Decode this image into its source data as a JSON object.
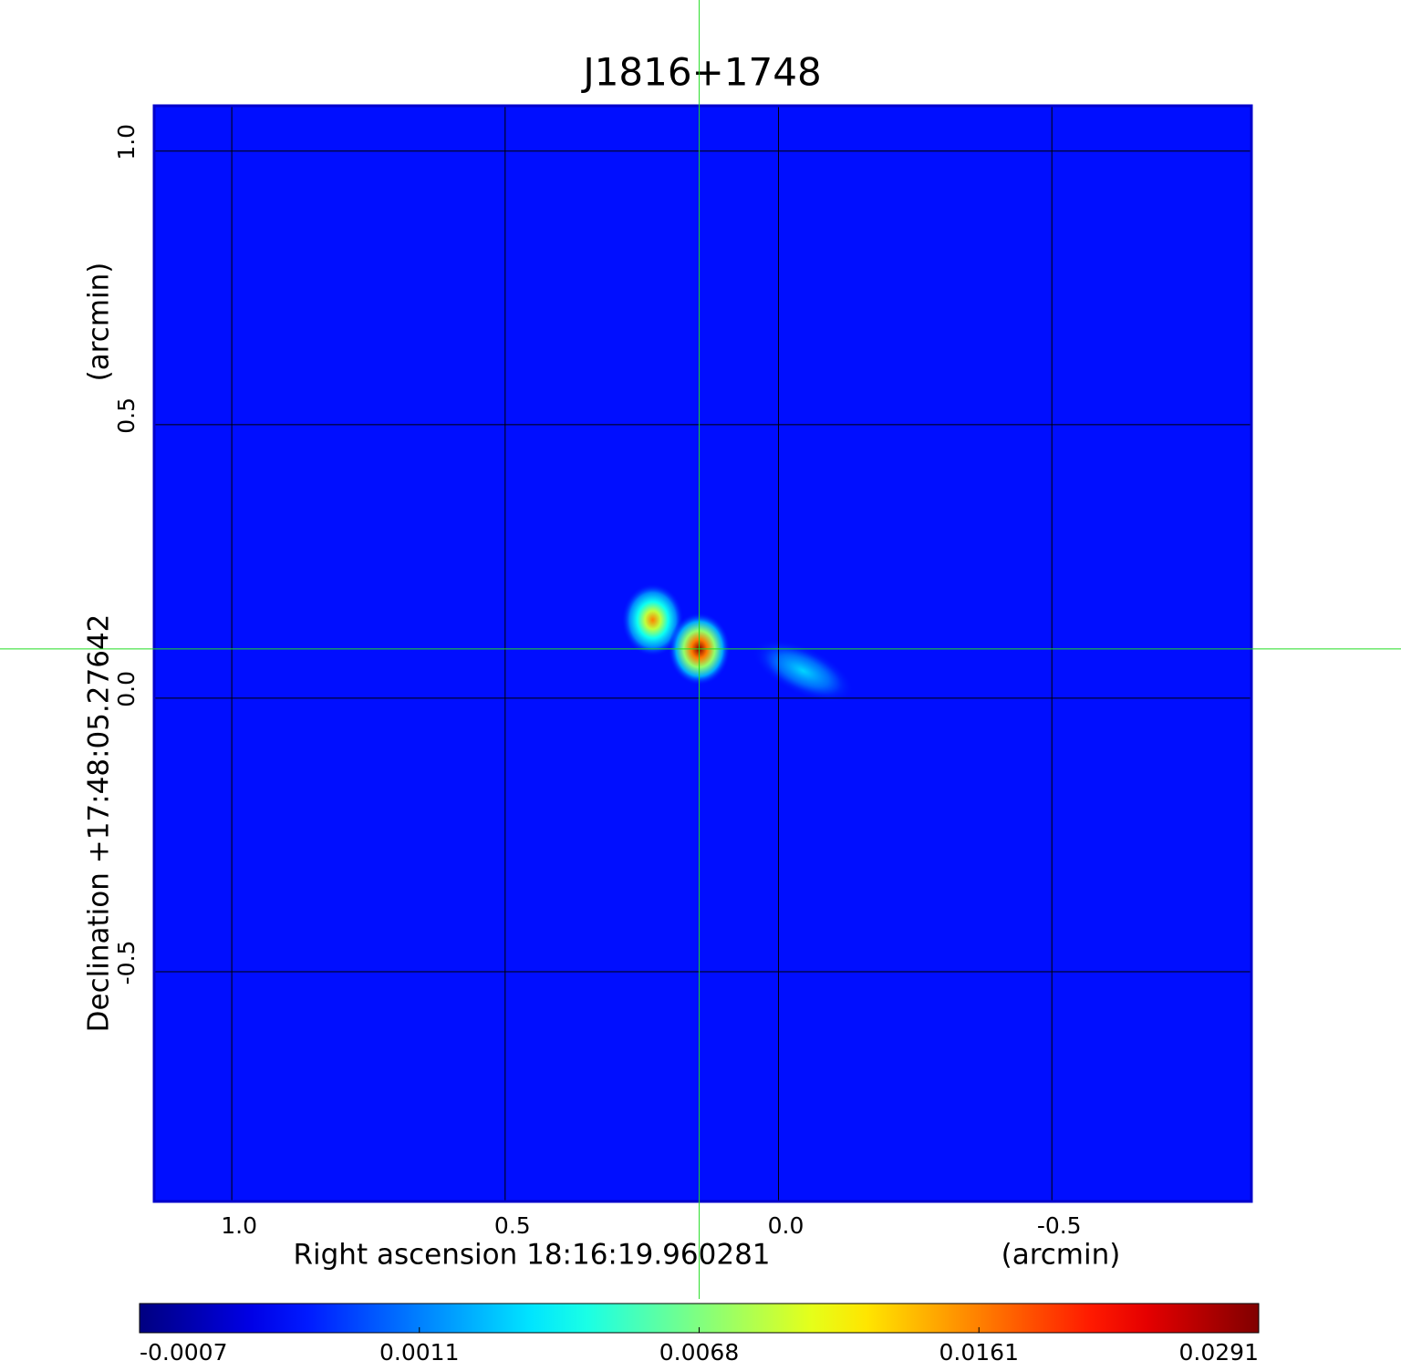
{
  "chart_data": {
    "type": "image",
    "title": "J1816+1748",
    "title_color": "#1010d0",
    "xlabel": "Right ascension  18:16:19.960281",
    "xunit": "(arcmin)",
    "ylabel": "Declination  +17:48:05.27642",
    "yunit": "(arcmin)",
    "xlim": [
      1.142,
      -0.865
    ],
    "ylim": [
      -0.92,
      1.083
    ],
    "xticks": [
      {
        "value": 1.0,
        "label": "1.0"
      },
      {
        "value": 0.5,
        "label": "0.5"
      },
      {
        "value": 0.0,
        "label": "0.0"
      },
      {
        "value": -0.5,
        "label": "-0.5"
      }
    ],
    "yticks": [
      {
        "value": 1.0,
        "label": "1.0"
      },
      {
        "value": 0.5,
        "label": "0.5"
      },
      {
        "value": 0.0,
        "label": "0.0"
      },
      {
        "value": -0.5,
        "label": "-0.5"
      }
    ],
    "grid": true,
    "frame_color": "#0000cc",
    "crosshair": {
      "x": 0.145,
      "y": 0.09,
      "color": "#22dd22"
    },
    "background": 0.0003,
    "sources": [
      {
        "x": 0.23,
        "y": 0.143,
        "peak": 0.0161
      },
      {
        "x": -0.045,
        "y": 0.05,
        "peak": 0.003
      },
      {
        "x": 0.145,
        "y": 0.09,
        "peak": 0.0291
      }
    ],
    "colorbar": {
      "ticks": [
        -0.0007,
        0.0011,
        0.0068,
        0.0161,
        0.0291
      ]
    }
  }
}
